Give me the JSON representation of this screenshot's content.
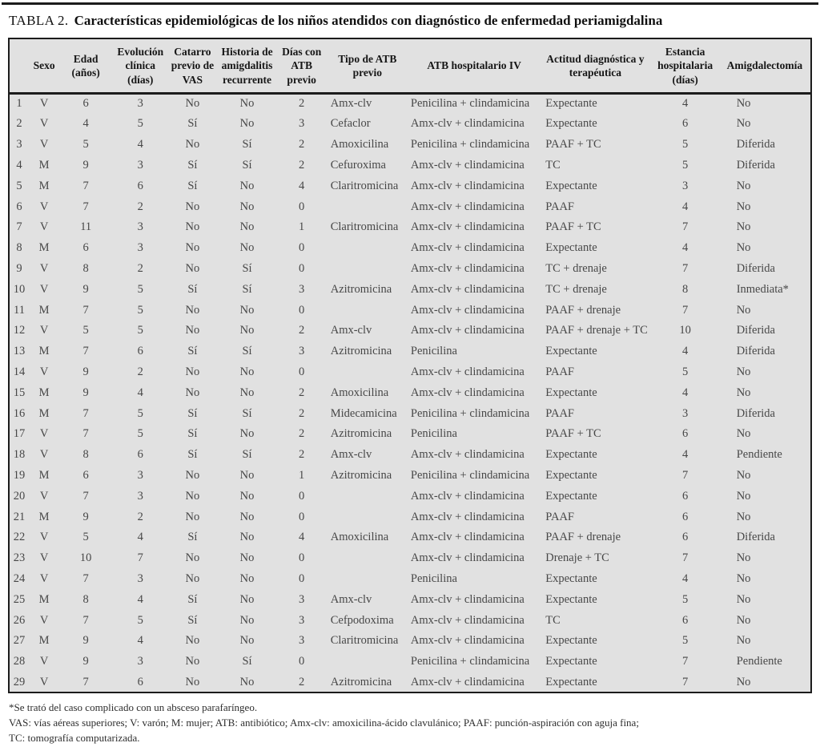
{
  "title": {
    "label": "TABLA 2.",
    "text": "Características epidemiológicas de los niños atendidos con diagnóstico de enfermedad periamigdalina"
  },
  "table": {
    "columns": [
      {
        "label": ""
      },
      {
        "label": "Sexo"
      },
      {
        "label": "Edad (años)"
      },
      {
        "label": "Evolución clínica (días)"
      },
      {
        "label": "Catarro previo de VAS"
      },
      {
        "label": "Historia de amigdalitis recurrente"
      },
      {
        "label": "Días con ATB previo"
      },
      {
        "label": "Tipo de ATB previo"
      },
      {
        "label": "ATB hospitalario IV"
      },
      {
        "label": "Actitud diagnóstica y terapéutica"
      },
      {
        "label": "Estancia hospitalaria (días)"
      },
      {
        "label": "Amigdalectomía"
      }
    ],
    "rows": [
      [
        "1",
        "V",
        "6",
        "3",
        "No",
        "No",
        "2",
        "Amx-clv",
        "Penicilina + clindamicina",
        "Expectante",
        "4",
        "No"
      ],
      [
        "2",
        "V",
        "4",
        "5",
        "Sí",
        "No",
        "3",
        "Cefaclor",
        "Amx-clv + clindamicina",
        "Expectante",
        "6",
        "No"
      ],
      [
        "3",
        "V",
        "5",
        "4",
        "No",
        "Sí",
        "2",
        "Amoxicilina",
        "Penicilina + clindamicina",
        "PAAF + TC",
        "5",
        "Diferida"
      ],
      [
        "4",
        "M",
        "9",
        "3",
        "Sí",
        "Sí",
        "2",
        "Cefuroxima",
        "Amx-clv + clindamicina",
        "TC",
        "5",
        "Diferida"
      ],
      [
        "5",
        "M",
        "7",
        "6",
        "Sí",
        "No",
        "4",
        "Claritromicina",
        "Amx-clv + clindamicina",
        "Expectante",
        "3",
        "No"
      ],
      [
        "6",
        "V",
        "7",
        "2",
        "No",
        "No",
        "0",
        "",
        "Amx-clv + clindamicina",
        "PAAF",
        "4",
        "No"
      ],
      [
        "7",
        "V",
        "11",
        "3",
        "No",
        "No",
        "1",
        "Claritromicina",
        "Amx-clv + clindamicina",
        "PAAF + TC",
        "7",
        "No"
      ],
      [
        "8",
        "M",
        "6",
        "3",
        "No",
        "No",
        "0",
        "",
        "Amx-clv + clindamicina",
        "Expectante",
        "4",
        "No"
      ],
      [
        "9",
        "V",
        "8",
        "2",
        "No",
        "Sí",
        "0",
        "",
        "Amx-clv + clindamicina",
        "TC + drenaje",
        "7",
        "Diferida"
      ],
      [
        "10",
        "V",
        "9",
        "5",
        "Sí",
        "Sí",
        "3",
        "Azitromicina",
        "Amx-clv + clindamicina",
        "TC + drenaje",
        "8",
        "Inmediata*"
      ],
      [
        "11",
        "M",
        "7",
        "5",
        "No",
        "No",
        "0",
        "",
        "Amx-clv + clindamicina",
        "PAAF + drenaje",
        "7",
        "No"
      ],
      [
        "12",
        "V",
        "5",
        "5",
        "No",
        "No",
        "2",
        "Amx-clv",
        "Amx-clv + clindamicina",
        "PAAF + drenaje + TC",
        "10",
        "Diferida"
      ],
      [
        "13",
        "M",
        "7",
        "6",
        "Sí",
        "Sí",
        "3",
        "Azitromicina",
        "Penicilina",
        "Expectante",
        "4",
        "Diferida"
      ],
      [
        "14",
        "V",
        "9",
        "2",
        "No",
        "No",
        "0",
        "",
        "Amx-clv + clindamicina",
        "PAAF",
        "5",
        "No"
      ],
      [
        "15",
        "M",
        "9",
        "4",
        "No",
        "No",
        "2",
        "Amoxicilina",
        "Amx-clv + clindamicina",
        "Expectante",
        "4",
        "No"
      ],
      [
        "16",
        "M",
        "7",
        "5",
        "Sí",
        "Sí",
        "2",
        "Midecamicina",
        "Penicilina + clindamicina",
        "PAAF",
        "3",
        "Diferida"
      ],
      [
        "17",
        "V",
        "7",
        "5",
        "Sí",
        "No",
        "2",
        "Azitromicina",
        "Penicilina",
        "PAAF + TC",
        "6",
        "No"
      ],
      [
        "18",
        "V",
        "8",
        "6",
        "Sí",
        "Sí",
        "2",
        "Amx-clv",
        "Amx-clv + clindamicina",
        "Expectante",
        "4",
        "Pendiente"
      ],
      [
        "19",
        "M",
        "6",
        "3",
        "No",
        "No",
        "1",
        "Azitromicina",
        "Penicilina + clindamicina",
        "Expectante",
        "7",
        "No"
      ],
      [
        "20",
        "V",
        "7",
        "3",
        "No",
        "No",
        "0",
        "",
        "Amx-clv + clindamicina",
        "Expectante",
        "6",
        "No"
      ],
      [
        "21",
        "M",
        "9",
        "2",
        "No",
        "No",
        "0",
        "",
        "Amx-clv + clindamicina",
        "PAAF",
        "6",
        "No"
      ],
      [
        "22",
        "V",
        "5",
        "4",
        "Sí",
        "No",
        "4",
        "Amoxicilina",
        "Amx-clv + clindamicina",
        "PAAF + drenaje",
        "6",
        "Diferida"
      ],
      [
        "23",
        "V",
        "10",
        "7",
        "No",
        "No",
        "0",
        "",
        "Amx-clv + clindamicina",
        "Drenaje + TC",
        "7",
        "No"
      ],
      [
        "24",
        "V",
        "7",
        "3",
        "No",
        "No",
        "0",
        "",
        "Penicilina",
        "Expectante",
        "4",
        "No"
      ],
      [
        "25",
        "M",
        "8",
        "4",
        "Sí",
        "No",
        "3",
        "Amx-clv",
        "Amx-clv + clindamicina",
        "Expectante",
        "5",
        "No"
      ],
      [
        "26",
        "V",
        "7",
        "5",
        "Sí",
        "No",
        "3",
        "Cefpodoxima",
        "Amx-clv + clindamicina",
        "TC",
        "6",
        "No"
      ],
      [
        "27",
        "M",
        "9",
        "4",
        "No",
        "No",
        "3",
        "Claritromicina",
        "Amx-clv + clindamicina",
        "Expectante",
        "5",
        "No"
      ],
      [
        "28",
        "V",
        "9",
        "3",
        "No",
        "Sí",
        "0",
        "",
        "Penicilina + clindamicina",
        "Expectante",
        "7",
        "Pendiente"
      ],
      [
        "29",
        "V",
        "7",
        "6",
        "No",
        "No",
        "2",
        "Azitromicina",
        "Amx-clv + clindamicina",
        "Expectante",
        "7",
        "No"
      ]
    ]
  },
  "footnotes": [
    "*Se trató del caso complicado con un absceso parafaríngeo.",
    "VAS: vías aéreas superiores; V: varón; M: mujer; ATB: antibiótico; Amx-clv: amoxicilina-ácido clavulánico; PAAF: punción-aspiración con aguja fina;",
    "TC: tomografía computarizada."
  ],
  "colors": {
    "table_background": "#e1e1e1",
    "border": "#1c1c1c",
    "body_text": "#474747",
    "header_text": "#161616"
  }
}
